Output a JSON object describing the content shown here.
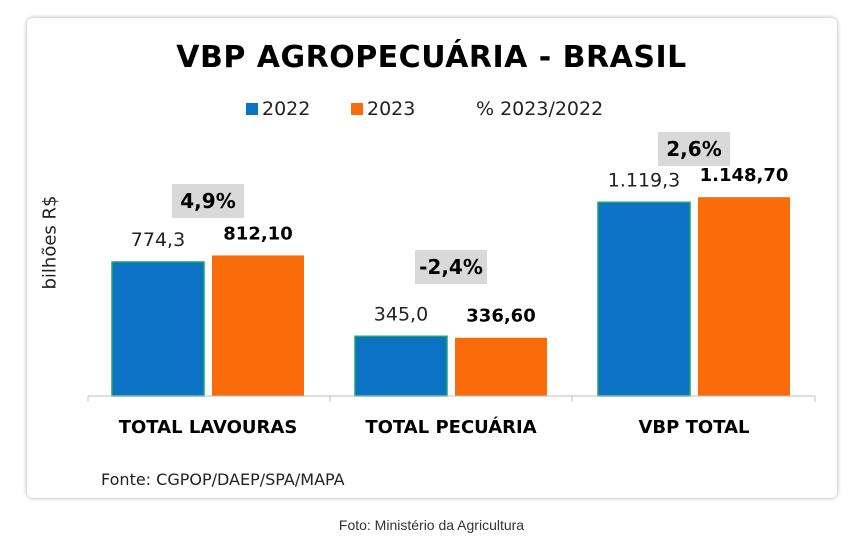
{
  "caption": "Foto: Ministério da Agricultura",
  "chart_data": {
    "type": "bar",
    "title": "VBP AGROPECUÁRIA - BRASIL",
    "ylabel": "bilhões R$",
    "source": "Fonte: CGPOP/DAEP/SPA/MAPA",
    "categories": [
      "TOTAL LAVOURAS",
      "TOTAL PECUÁRIA",
      "VBP TOTAL"
    ],
    "series": [
      {
        "name": "2022",
        "color": "#0b72c4",
        "values": [
          774.3,
          345.0,
          1119.3
        ],
        "labels": [
          "774,3",
          "345,0",
          "1.119,3"
        ]
      },
      {
        "name": "2023",
        "color": "#fa6b0a",
        "values": [
          812.1,
          336.6,
          1148.7
        ],
        "labels": [
          "812,10",
          "336,60",
          "1.148,70"
        ]
      }
    ],
    "pct_change": {
      "name": "% 2023/2022",
      "values": [
        4.9,
        -2.4,
        2.6
      ],
      "labels": [
        "4,9%",
        "-2,4%",
        "2,6%"
      ],
      "box_color": "#d9d9d9"
    },
    "legend_position": "top",
    "grid": false
  }
}
